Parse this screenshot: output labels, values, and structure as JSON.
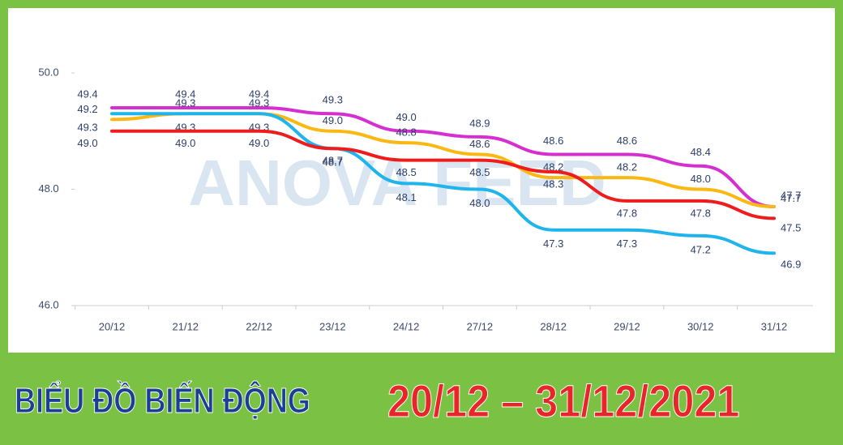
{
  "chart_data": {
    "type": "line",
    "watermark": "ANOVA FEED",
    "footer_title": "BIỂU ĐỒ BIẾN ĐỘNG",
    "footer_range": "20/12 – 31/12/2021",
    "categories": [
      "20/12",
      "21/12",
      "22/12",
      "23/12",
      "24/12",
      "27/12",
      "28/12",
      "29/12",
      "30/12",
      "31/12"
    ],
    "ylim": [
      46,
      50
    ],
    "yticks": [
      {
        "value": 46,
        "label": "46.0"
      },
      {
        "value": 48,
        "label": "48.0"
      },
      {
        "value": 50,
        "label": "50.0"
      }
    ],
    "series": [
      {
        "color": "#d62fd0",
        "values": [
          49.4,
          49.4,
          49.4,
          49.3,
          49,
          48.9,
          48.6,
          48.6,
          48.4,
          47.7
        ],
        "value_labels": [
          "49.4",
          "49.4",
          "49.4",
          "49.3",
          "49.0",
          "48.9",
          "48.6",
          "48.6",
          "48.4",
          "47.7"
        ]
      },
      {
        "color": "#fbb812",
        "values": [
          49.2,
          49.3,
          49.3,
          49,
          48.8,
          48.6,
          48.2,
          48.2,
          48,
          47.7
        ],
        "value_labels": [
          "49.2",
          "49.3",
          "49.3",
          "49.0",
          "48.8",
          "48.6",
          "48.2",
          "48.2",
          "48.0",
          "47.7"
        ]
      },
      {
        "color": "#1fb4ec",
        "values": [
          49.3,
          49.3,
          49.3,
          48.7,
          48.1,
          48,
          47.3,
          47.3,
          47.2,
          46.9
        ],
        "value_labels": [
          "49.3",
          "49.3",
          "49.3",
          "48.7",
          "48.1",
          "48.0",
          "47.3",
          "47.3",
          "47.2",
          "46.9"
        ]
      },
      {
        "color": "#ee1c1c",
        "values": [
          49,
          49,
          49,
          48.7,
          48.5,
          48.5,
          48.3,
          47.8,
          47.8,
          47.5
        ],
        "value_labels": [
          "49.0",
          "49.0",
          "49.0",
          "48.7",
          "48.5",
          "48.5",
          "48.3",
          "47.8",
          "47.8",
          "47.5"
        ]
      }
    ]
  }
}
